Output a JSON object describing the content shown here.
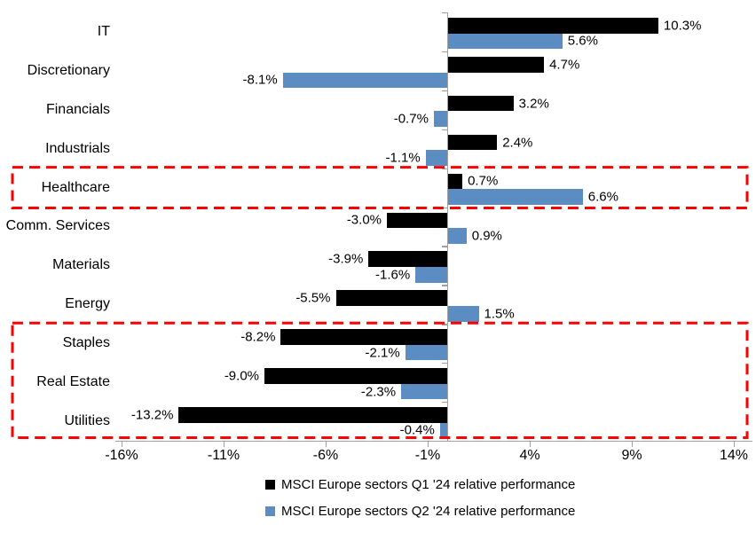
{
  "chart_data": {
    "type": "bar",
    "orientation": "horizontal",
    "title": "",
    "xlabel": "",
    "ylabel": "",
    "grid": false,
    "legend_position": "bottom",
    "categories": [
      "IT",
      "Discretionary",
      "Financials",
      "Industrials",
      "Healthcare",
      "Comm. Services",
      "Materials",
      "Energy",
      "Staples",
      "Real Estate",
      "Utilities"
    ],
    "series": [
      {
        "name": "MSCI Europe sectors Q1 '24 relative performance",
        "color": "#000000",
        "values": [
          10.3,
          4.7,
          3.2,
          2.4,
          0.7,
          -3.0,
          -3.9,
          -5.5,
          -8.2,
          -9.0,
          -13.2
        ]
      },
      {
        "name": "MSCI Europe sectors Q2 '24 relative performance",
        "color": "#5b8dc3",
        "values": [
          5.6,
          -8.1,
          -0.7,
          -1.1,
          6.6,
          0.9,
          -1.6,
          1.5,
          -2.1,
          -2.3,
          -0.4
        ]
      }
    ],
    "data_labels": {
      "format": "{value}%",
      "decimals": 1
    },
    "x_ticks": [
      {
        "value": -16,
        "label": "-16%"
      },
      {
        "value": -11,
        "label": "-11%"
      },
      {
        "value": -6,
        "label": "-6%"
      },
      {
        "value": -1,
        "label": "-1%"
      },
      {
        "value": 4,
        "label": "4%"
      },
      {
        "value": 9,
        "label": "9%"
      },
      {
        "value": 14,
        "label": "14%"
      }
    ],
    "xlim": [
      -16.3,
      14.9
    ],
    "axis_color": "#a0a0a0",
    "highlights": {
      "color": "#ff0000",
      "boxes": [
        {
          "from": "Healthcare",
          "to": "Healthcare"
        },
        {
          "from": "Staples",
          "to": "Utilities"
        }
      ]
    }
  }
}
